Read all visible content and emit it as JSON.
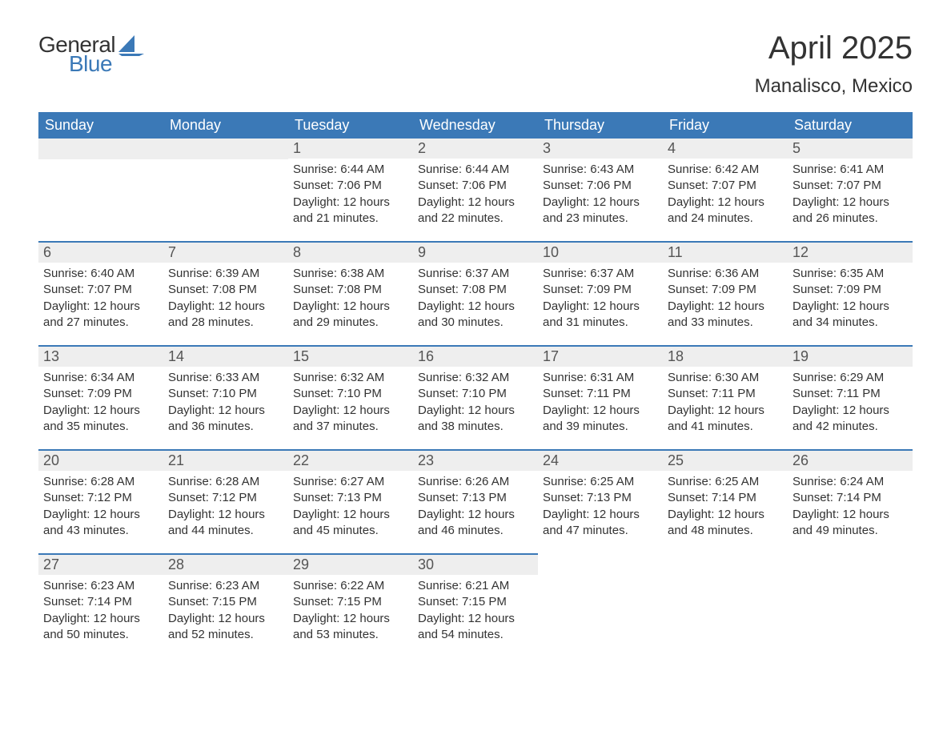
{
  "logo": {
    "text_general": "General",
    "text_blue": "Blue",
    "sail_color": "#3b79b7"
  },
  "title": {
    "month": "April 2025",
    "location": "Manalisco, Mexico"
  },
  "colors": {
    "header_bg": "#3b79b7",
    "header_text": "#ffffff",
    "daynum_bg": "#eeeeee",
    "border_top": "#3b79b7",
    "body_text": "#333333"
  },
  "day_headers": [
    "Sunday",
    "Monday",
    "Tuesday",
    "Wednesday",
    "Thursday",
    "Friday",
    "Saturday"
  ],
  "weeks": [
    [
      null,
      null,
      {
        "num": "1",
        "sunrise": "Sunrise: 6:44 AM",
        "sunset": "Sunset: 7:06 PM",
        "daylight1": "Daylight: 12 hours",
        "daylight2": "and 21 minutes."
      },
      {
        "num": "2",
        "sunrise": "Sunrise: 6:44 AM",
        "sunset": "Sunset: 7:06 PM",
        "daylight1": "Daylight: 12 hours",
        "daylight2": "and 22 minutes."
      },
      {
        "num": "3",
        "sunrise": "Sunrise: 6:43 AM",
        "sunset": "Sunset: 7:06 PM",
        "daylight1": "Daylight: 12 hours",
        "daylight2": "and 23 minutes."
      },
      {
        "num": "4",
        "sunrise": "Sunrise: 6:42 AM",
        "sunset": "Sunset: 7:07 PM",
        "daylight1": "Daylight: 12 hours",
        "daylight2": "and 24 minutes."
      },
      {
        "num": "5",
        "sunrise": "Sunrise: 6:41 AM",
        "sunset": "Sunset: 7:07 PM",
        "daylight1": "Daylight: 12 hours",
        "daylight2": "and 26 minutes."
      }
    ],
    [
      {
        "num": "6",
        "sunrise": "Sunrise: 6:40 AM",
        "sunset": "Sunset: 7:07 PM",
        "daylight1": "Daylight: 12 hours",
        "daylight2": "and 27 minutes."
      },
      {
        "num": "7",
        "sunrise": "Sunrise: 6:39 AM",
        "sunset": "Sunset: 7:08 PM",
        "daylight1": "Daylight: 12 hours",
        "daylight2": "and 28 minutes."
      },
      {
        "num": "8",
        "sunrise": "Sunrise: 6:38 AM",
        "sunset": "Sunset: 7:08 PM",
        "daylight1": "Daylight: 12 hours",
        "daylight2": "and 29 minutes."
      },
      {
        "num": "9",
        "sunrise": "Sunrise: 6:37 AM",
        "sunset": "Sunset: 7:08 PM",
        "daylight1": "Daylight: 12 hours",
        "daylight2": "and 30 minutes."
      },
      {
        "num": "10",
        "sunrise": "Sunrise: 6:37 AM",
        "sunset": "Sunset: 7:09 PM",
        "daylight1": "Daylight: 12 hours",
        "daylight2": "and 31 minutes."
      },
      {
        "num": "11",
        "sunrise": "Sunrise: 6:36 AM",
        "sunset": "Sunset: 7:09 PM",
        "daylight1": "Daylight: 12 hours",
        "daylight2": "and 33 minutes."
      },
      {
        "num": "12",
        "sunrise": "Sunrise: 6:35 AM",
        "sunset": "Sunset: 7:09 PM",
        "daylight1": "Daylight: 12 hours",
        "daylight2": "and 34 minutes."
      }
    ],
    [
      {
        "num": "13",
        "sunrise": "Sunrise: 6:34 AM",
        "sunset": "Sunset: 7:09 PM",
        "daylight1": "Daylight: 12 hours",
        "daylight2": "and 35 minutes."
      },
      {
        "num": "14",
        "sunrise": "Sunrise: 6:33 AM",
        "sunset": "Sunset: 7:10 PM",
        "daylight1": "Daylight: 12 hours",
        "daylight2": "and 36 minutes."
      },
      {
        "num": "15",
        "sunrise": "Sunrise: 6:32 AM",
        "sunset": "Sunset: 7:10 PM",
        "daylight1": "Daylight: 12 hours",
        "daylight2": "and 37 minutes."
      },
      {
        "num": "16",
        "sunrise": "Sunrise: 6:32 AM",
        "sunset": "Sunset: 7:10 PM",
        "daylight1": "Daylight: 12 hours",
        "daylight2": "and 38 minutes."
      },
      {
        "num": "17",
        "sunrise": "Sunrise: 6:31 AM",
        "sunset": "Sunset: 7:11 PM",
        "daylight1": "Daylight: 12 hours",
        "daylight2": "and 39 minutes."
      },
      {
        "num": "18",
        "sunrise": "Sunrise: 6:30 AM",
        "sunset": "Sunset: 7:11 PM",
        "daylight1": "Daylight: 12 hours",
        "daylight2": "and 41 minutes."
      },
      {
        "num": "19",
        "sunrise": "Sunrise: 6:29 AM",
        "sunset": "Sunset: 7:11 PM",
        "daylight1": "Daylight: 12 hours",
        "daylight2": "and 42 minutes."
      }
    ],
    [
      {
        "num": "20",
        "sunrise": "Sunrise: 6:28 AM",
        "sunset": "Sunset: 7:12 PM",
        "daylight1": "Daylight: 12 hours",
        "daylight2": "and 43 minutes."
      },
      {
        "num": "21",
        "sunrise": "Sunrise: 6:28 AM",
        "sunset": "Sunset: 7:12 PM",
        "daylight1": "Daylight: 12 hours",
        "daylight2": "and 44 minutes."
      },
      {
        "num": "22",
        "sunrise": "Sunrise: 6:27 AM",
        "sunset": "Sunset: 7:13 PM",
        "daylight1": "Daylight: 12 hours",
        "daylight2": "and 45 minutes."
      },
      {
        "num": "23",
        "sunrise": "Sunrise: 6:26 AM",
        "sunset": "Sunset: 7:13 PM",
        "daylight1": "Daylight: 12 hours",
        "daylight2": "and 46 minutes."
      },
      {
        "num": "24",
        "sunrise": "Sunrise: 6:25 AM",
        "sunset": "Sunset: 7:13 PM",
        "daylight1": "Daylight: 12 hours",
        "daylight2": "and 47 minutes."
      },
      {
        "num": "25",
        "sunrise": "Sunrise: 6:25 AM",
        "sunset": "Sunset: 7:14 PM",
        "daylight1": "Daylight: 12 hours",
        "daylight2": "and 48 minutes."
      },
      {
        "num": "26",
        "sunrise": "Sunrise: 6:24 AM",
        "sunset": "Sunset: 7:14 PM",
        "daylight1": "Daylight: 12 hours",
        "daylight2": "and 49 minutes."
      }
    ],
    [
      {
        "num": "27",
        "sunrise": "Sunrise: 6:23 AM",
        "sunset": "Sunset: 7:14 PM",
        "daylight1": "Daylight: 12 hours",
        "daylight2": "and 50 minutes."
      },
      {
        "num": "28",
        "sunrise": "Sunrise: 6:23 AM",
        "sunset": "Sunset: 7:15 PM",
        "daylight1": "Daylight: 12 hours",
        "daylight2": "and 52 minutes."
      },
      {
        "num": "29",
        "sunrise": "Sunrise: 6:22 AM",
        "sunset": "Sunset: 7:15 PM",
        "daylight1": "Daylight: 12 hours",
        "daylight2": "and 53 minutes."
      },
      {
        "num": "30",
        "sunrise": "Sunrise: 6:21 AM",
        "sunset": "Sunset: 7:15 PM",
        "daylight1": "Daylight: 12 hours",
        "daylight2": "and 54 minutes."
      },
      null,
      null,
      null
    ]
  ]
}
